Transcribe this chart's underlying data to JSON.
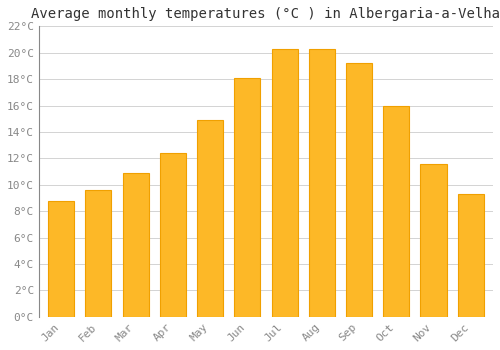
{
  "title": "Average monthly temperatures (°C ) in Albergaria-a-Velha",
  "months": [
    "Jan",
    "Feb",
    "Mar",
    "Apr",
    "May",
    "Jun",
    "Jul",
    "Aug",
    "Sep",
    "Oct",
    "Nov",
    "Dec"
  ],
  "values": [
    8.8,
    9.6,
    10.9,
    12.4,
    14.9,
    18.1,
    20.3,
    20.3,
    19.2,
    16.0,
    11.6,
    9.3
  ],
  "bar_color": "#FDB827",
  "bar_edge_color": "#F0A000",
  "background_color": "#FFFFFF",
  "grid_color": "#CCCCCC",
  "text_color": "#888888",
  "title_color": "#333333",
  "ylim": [
    0,
    22
  ],
  "ytick_step": 2,
  "title_fontsize": 10,
  "tick_fontsize": 8,
  "font_family": "monospace"
}
